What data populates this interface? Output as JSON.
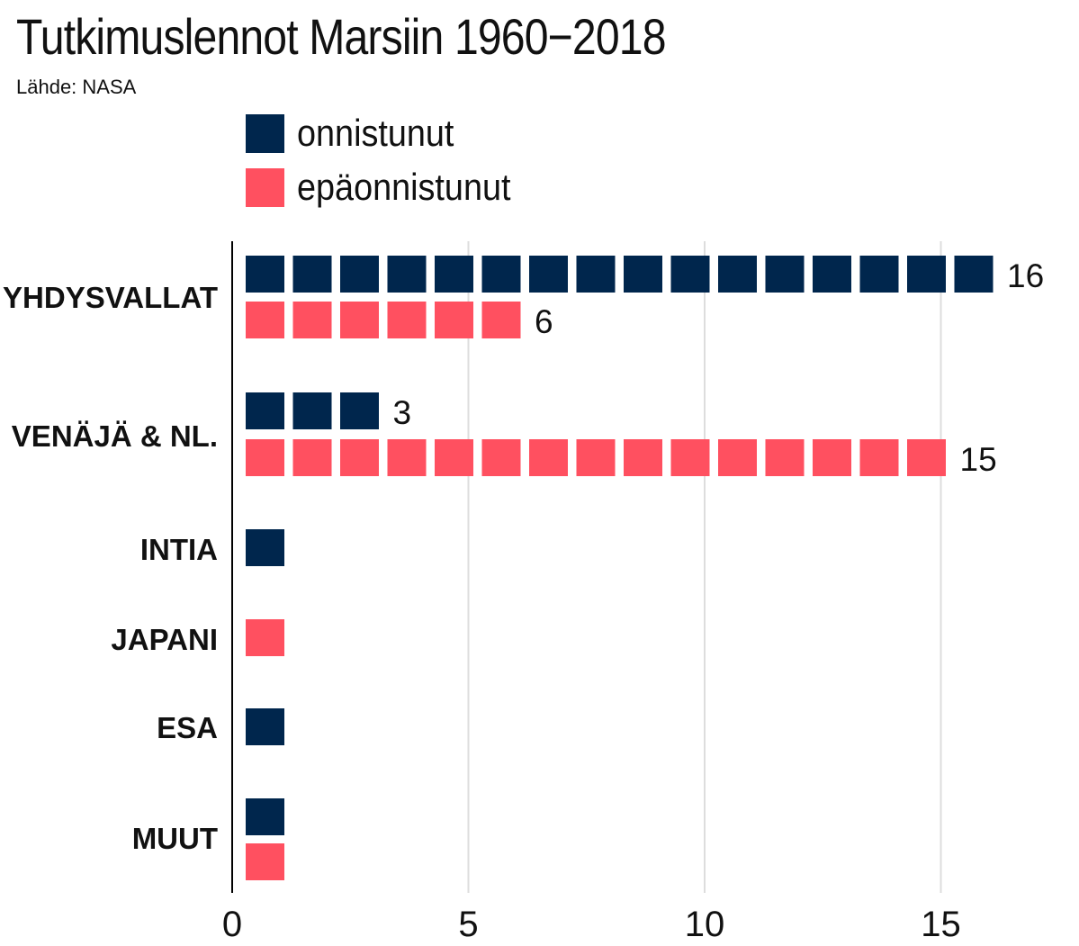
{
  "title": "Tutkimuslennot Marsiin 1960−2018",
  "source": "Lähde: NASA",
  "legend": [
    {
      "label": "onnistunut",
      "color": "#00264d"
    },
    {
      "label": "epäonnistunut",
      "color": "#ff5060"
    }
  ],
  "chart_data": {
    "type": "bar",
    "orientation": "horizontal",
    "title": "Tutkimuslennot Marsiin 1960−2018",
    "categories": [
      "YHDYSVALLAT",
      "VENÄJÄ & NL.",
      "INTIA",
      "JAPANI",
      "ESA",
      "MUUT"
    ],
    "series": [
      {
        "name": "onnistunut",
        "color": "#00264d",
        "values": [
          16,
          3,
          1,
          0,
          1,
          1
        ]
      },
      {
        "name": "epäonnistunut",
        "color": "#ff5060",
        "values": [
          6,
          15,
          0,
          1,
          0,
          1
        ]
      }
    ],
    "data_labels": [
      {
        "category": "YHDYSVALLAT",
        "series": "onnistunut",
        "text": "16"
      },
      {
        "category": "YHDYSVALLAT",
        "series": "epäonnistunut",
        "text": "6"
      },
      {
        "category": "VENÄJÄ & NL.",
        "series": "onnistunut",
        "text": "3"
      },
      {
        "category": "VENÄJÄ & NL.",
        "series": "epäonnistunut",
        "text": "15"
      }
    ],
    "xlim": [
      0,
      16.5
    ],
    "xticks": [
      0,
      5,
      10,
      15
    ],
    "xlabel": "",
    "ylabel": "",
    "grid": true,
    "legend_position": "top"
  }
}
